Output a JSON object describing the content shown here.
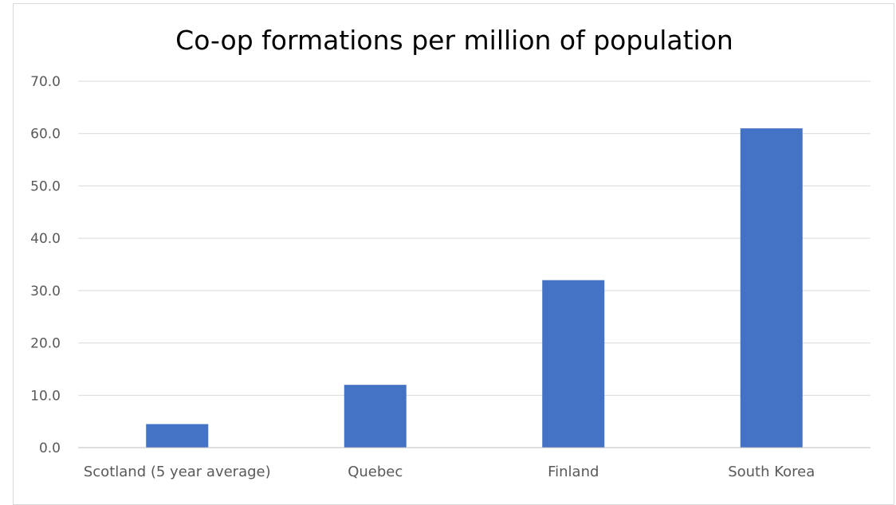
{
  "chart_data": {
    "type": "bar",
    "title": "Co-op formations per million of population",
    "xlabel": "",
    "ylabel": "",
    "categories": [
      "Scotland (5 year average)",
      "Quebec",
      "Finland",
      "South Korea"
    ],
    "values": [
      4.5,
      12.0,
      32.0,
      61.0
    ],
    "ylim": [
      0,
      70
    ],
    "yticks": [
      "0.0",
      "10.0",
      "20.0",
      "30.0",
      "40.0",
      "50.0",
      "60.0",
      "70.0"
    ],
    "bar_color": "#4472C4",
    "grid": true,
    "legend": "none"
  }
}
